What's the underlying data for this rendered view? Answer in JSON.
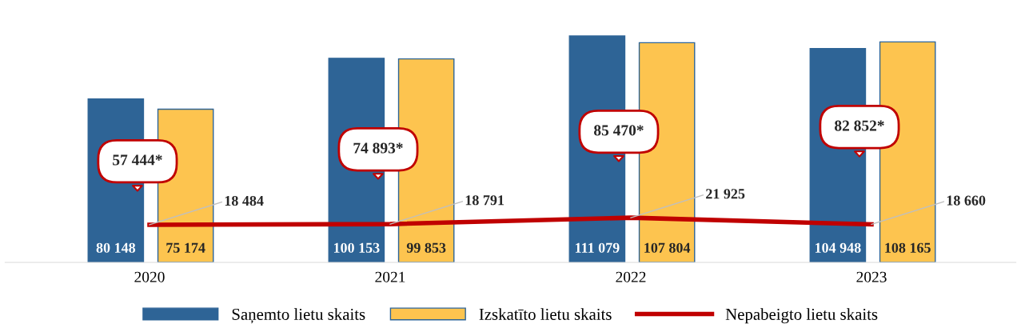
{
  "chart_data": {
    "type": "bar",
    "categories": [
      "2020",
      "2021",
      "2022",
      "2023"
    ],
    "series": [
      {
        "name": "Saņemto lietu skaits",
        "color": "#2e6496",
        "values": [
          80148,
          100153,
          111079,
          104948
        ],
        "value_labels": [
          "80 148",
          "100 153",
          "111 079",
          "104 948"
        ]
      },
      {
        "name": "Izskatīto lietu skaits",
        "color": "#fdc44f",
        "values": [
          75174,
          99853,
          107804,
          108165
        ],
        "value_labels": [
          "75 174",
          "99 853",
          "107 804",
          "108 165"
        ]
      },
      {
        "name": "Nepabeigto lietu skaits",
        "type": "line",
        "color": "#c00000",
        "values": [
          18484,
          18791,
          21925,
          18660
        ],
        "value_labels": [
          "18 484",
          "18 791",
          "21 925",
          "18 660"
        ]
      }
    ],
    "annotations": [
      "57 444*",
      "74 893*",
      "85 470*",
      "82 852*"
    ],
    "legend": "bottom",
    "marker": "none",
    "line_style": "solid"
  }
}
